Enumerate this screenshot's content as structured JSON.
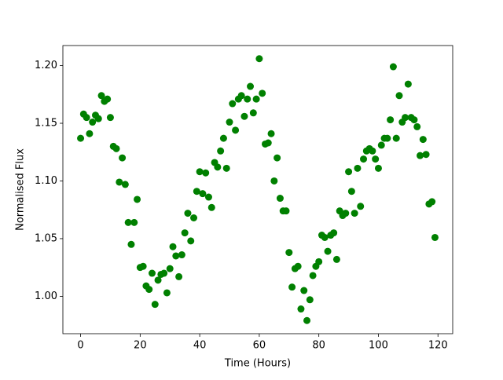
{
  "chart_data": {
    "type": "scatter",
    "xlabel": "Time (Hours)",
    "ylabel": "Normalised Flux",
    "color": "#008000",
    "x": [
      0,
      1,
      2,
      3,
      4,
      5,
      6,
      7,
      8,
      9,
      10,
      11,
      12,
      13,
      14,
      15,
      16,
      17,
      18,
      19,
      20,
      21,
      22,
      23,
      24,
      25,
      26,
      27,
      28,
      29,
      30,
      31,
      32,
      33,
      34,
      35,
      36,
      37,
      38,
      39,
      40,
      41,
      42,
      43,
      44,
      45,
      46,
      47,
      48,
      49,
      50,
      51,
      52,
      53,
      54,
      55,
      56,
      57,
      58,
      59,
      60,
      61,
      62,
      63,
      64,
      65,
      66,
      67,
      68,
      69,
      70,
      71,
      72,
      73,
      74,
      75,
      76,
      77,
      78,
      79,
      80,
      81,
      82,
      83,
      84,
      85,
      86,
      87,
      88,
      89,
      90,
      91,
      92,
      93,
      94,
      95,
      96,
      97,
      98,
      99,
      100,
      101,
      102,
      103,
      104,
      105,
      106,
      107,
      108,
      109,
      110,
      111,
      112,
      113,
      114,
      115,
      116,
      117,
      118,
      119
    ],
    "values": [
      1.137,
      1.158,
      1.155,
      1.141,
      1.151,
      1.157,
      1.154,
      1.174,
      1.169,
      1.171,
      1.155,
      1.13,
      1.128,
      1.099,
      1.12,
      1.097,
      1.064,
      1.045,
      1.064,
      1.084,
      1.025,
      1.026,
      1.009,
      1.006,
      1.02,
      0.993,
      1.014,
      1.019,
      1.02,
      1.003,
      1.024,
      1.043,
      1.035,
      1.017,
      1.036,
      1.055,
      1.072,
      1.048,
      1.068,
      1.091,
      1.108,
      1.089,
      1.107,
      1.086,
      1.077,
      1.116,
      1.112,
      1.126,
      1.137,
      1.111,
      1.151,
      1.167,
      1.144,
      1.171,
      1.174,
      1.156,
      1.171,
      1.182,
      1.159,
      1.171,
      1.206,
      1.176,
      1.132,
      1.133,
      1.141,
      1.1,
      1.12,
      1.085,
      1.074,
      1.074,
      1.038,
      1.008,
      1.024,
      1.026,
      0.989,
      1.005,
      0.979,
      0.997,
      1.018,
      1.026,
      1.03,
      1.053,
      1.051,
      1.039,
      1.053,
      1.055,
      1.032,
      1.074,
      1.07,
      1.072,
      1.108,
      1.091,
      1.072,
      1.111,
      1.078,
      1.119,
      1.126,
      1.128,
      1.126,
      1.119,
      1.111,
      1.131,
      1.137,
      1.137,
      1.153,
      1.199,
      1.137,
      1.174,
      1.151,
      1.155,
      1.184,
      1.155,
      1.153,
      1.147,
      1.122,
      1.136,
      1.123,
      1.08,
      1.082,
      1.051
    ],
    "xlim": [
      -5.95,
      124.95
    ],
    "ylim": [
      0.9676,
      1.2174
    ],
    "xticks": [
      0,
      20,
      40,
      60,
      80,
      100,
      120
    ],
    "yticks": [
      {
        "value": 1.0,
        "label": "1.00"
      },
      1.05,
      {
        "value": 1.1,
        "label": "1.10"
      },
      1.15,
      {
        "value": 1.2,
        "label": "1.20"
      }
    ]
  }
}
